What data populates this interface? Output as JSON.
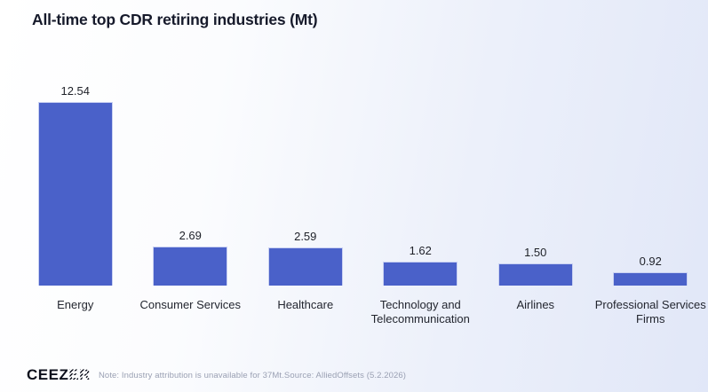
{
  "title": "All-time top CDR retiring industries (Mt)",
  "chart_data": {
    "type": "bar",
    "title": "All-time top CDR retiring industries (Mt)",
    "categories": [
      "Energy",
      "Consumer Services",
      "Healthcare",
      "Technology and Telecommunication",
      "Airlines",
      "Professional Services Firms"
    ],
    "values": [
      12.54,
      2.69,
      2.59,
      1.62,
      1.5,
      0.92
    ],
    "value_labels": [
      "12.54",
      "2.69",
      "2.59",
      "1.62",
      "1.50",
      "0.92"
    ],
    "xlabel": "",
    "ylabel": "",
    "ylim": [
      0,
      13
    ],
    "grid": false,
    "legend": false,
    "bar_color": "#4a61c9",
    "bar_border_color": "#c9d1f2"
  },
  "footer": {
    "logo_solid": "CEEZ",
    "logo_hatched": "ER",
    "note": "Note: Industry attribution is unavailable for 37Mt.Source: AlliedOffsets (5.2.2026)"
  },
  "colors": {
    "background_start": "#ffffff",
    "background_end": "#e1e7f8",
    "title_text": "#161a2b",
    "value_text": "#1e2128",
    "category_text": "#23262f",
    "note_text": "#9aa0b3"
  }
}
